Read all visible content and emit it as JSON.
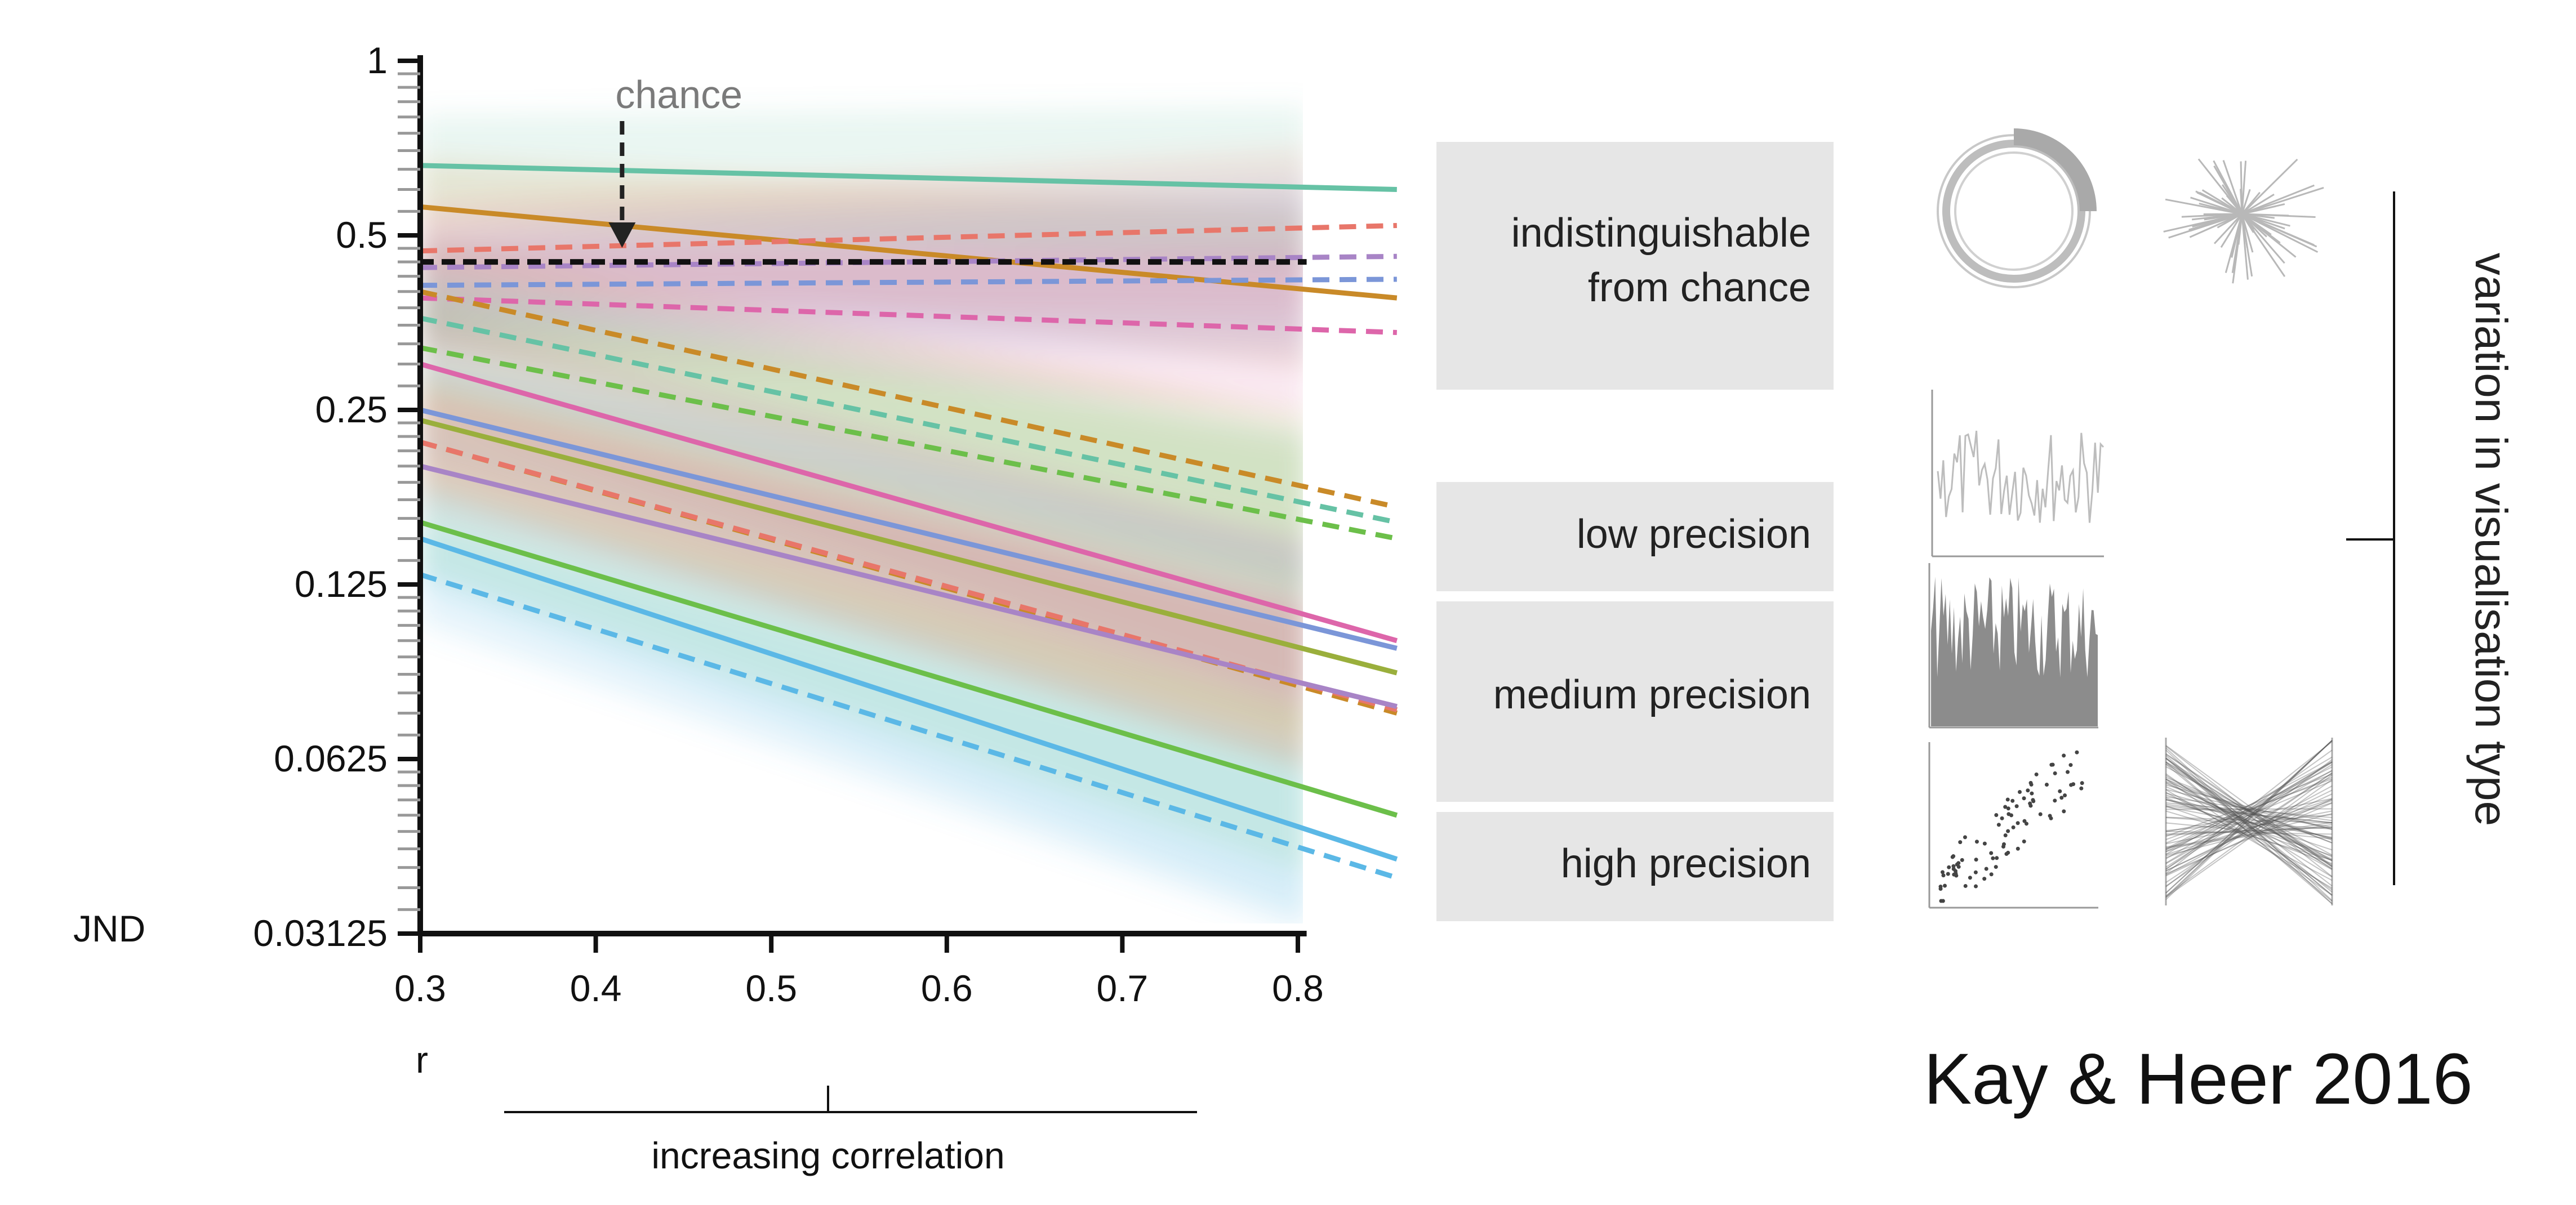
{
  "credit": "Kay & Heer 2016",
  "chance_label": "chance",
  "categories": [
    "indistinguishable from chance",
    "low precision",
    "medium precision",
    "high precision"
  ],
  "category_lines": [
    [
      "indistinguishable",
      "from chance"
    ],
    [
      "low precision"
    ],
    [
      "medium precision"
    ],
    [
      "high precision"
    ]
  ],
  "variation_label": "variation in visualisation type",
  "increasing_label": "increasing correlation",
  "colors": {
    "green": "#66c2a5",
    "orange": "#c98a28",
    "red": "#e8766a",
    "purple": "#a884c6",
    "blue": "#7b96d8",
    "pink": "#dd66aa",
    "olive": "#9aaf3c",
    "lightgreen": "#6cbf4a",
    "cyan": "#5bb8e6",
    "chance": "#111111",
    "category_box": "#e6e6e6"
  },
  "chart_data": {
    "type": "line",
    "xlabel": "r",
    "ylabel": "JND",
    "yscale": "log2",
    "xlim": [
      0.3,
      0.85
    ],
    "ylim": [
      0.03125,
      1
    ],
    "x_ticks": [
      "0.3",
      "0.4",
      "0.5",
      "0.6",
      "0.7",
      "0.8"
    ],
    "y_ticks": [
      "1",
      "0.5",
      "0.25",
      "0.125",
      "0.0625",
      "0.03125"
    ],
    "chance_level": 0.45,
    "series": [
      {
        "color": "green",
        "dash": false,
        "x": [
          0.3,
          0.85
        ],
        "y": [
          0.66,
          0.6
        ]
      },
      {
        "color": "orange",
        "dash": false,
        "x": [
          0.3,
          0.85
        ],
        "y": [
          0.56,
          0.39
        ]
      },
      {
        "color": "red",
        "dash": true,
        "x": [
          0.3,
          0.85
        ],
        "y": [
          0.47,
          0.52
        ]
      },
      {
        "color": "purple",
        "dash": true,
        "x": [
          0.3,
          0.85
        ],
        "y": [
          0.44,
          0.46
        ]
      },
      {
        "color": "blue",
        "dash": true,
        "x": [
          0.3,
          0.85
        ],
        "y": [
          0.41,
          0.42
        ]
      },
      {
        "color": "pink",
        "dash": true,
        "x": [
          0.3,
          0.85
        ],
        "y": [
          0.39,
          0.34
        ]
      },
      {
        "color": "orange",
        "dash": true,
        "x": [
          0.3,
          0.85
        ],
        "y": [
          0.4,
          0.17
        ]
      },
      {
        "color": "green",
        "dash": true,
        "x": [
          0.3,
          0.85
        ],
        "y": [
          0.36,
          0.16
        ]
      },
      {
        "color": "lightgreen",
        "dash": true,
        "x": [
          0.3,
          0.85
        ],
        "y": [
          0.32,
          0.15
        ]
      },
      {
        "color": "pink",
        "dash": false,
        "x": [
          0.3,
          0.85
        ],
        "y": [
          0.3,
          0.1
        ]
      },
      {
        "color": "blue",
        "dash": false,
        "x": [
          0.3,
          0.85
        ],
        "y": [
          0.25,
          0.097
        ]
      },
      {
        "color": "olive",
        "dash": false,
        "x": [
          0.3,
          0.85
        ],
        "y": [
          0.24,
          0.088
        ]
      },
      {
        "color": "orange",
        "dash": true,
        "x": [
          0.3,
          0.85
        ],
        "y": [
          0.22,
          0.075
        ]
      },
      {
        "color": "red",
        "dash": true,
        "x": [
          0.3,
          0.85
        ],
        "y": [
          0.22,
          0.076
        ]
      },
      {
        "color": "purple",
        "dash": false,
        "x": [
          0.3,
          0.85
        ],
        "y": [
          0.2,
          0.077
        ]
      },
      {
        "color": "lightgreen",
        "dash": false,
        "x": [
          0.3,
          0.85
        ],
        "y": [
          0.16,
          0.05
        ]
      },
      {
        "color": "cyan",
        "dash": false,
        "x": [
          0.3,
          0.85
        ],
        "y": [
          0.15,
          0.042
        ]
      },
      {
        "color": "cyan",
        "dash": true,
        "x": [
          0.3,
          0.85
        ],
        "y": [
          0.13,
          0.039
        ]
      }
    ]
  }
}
